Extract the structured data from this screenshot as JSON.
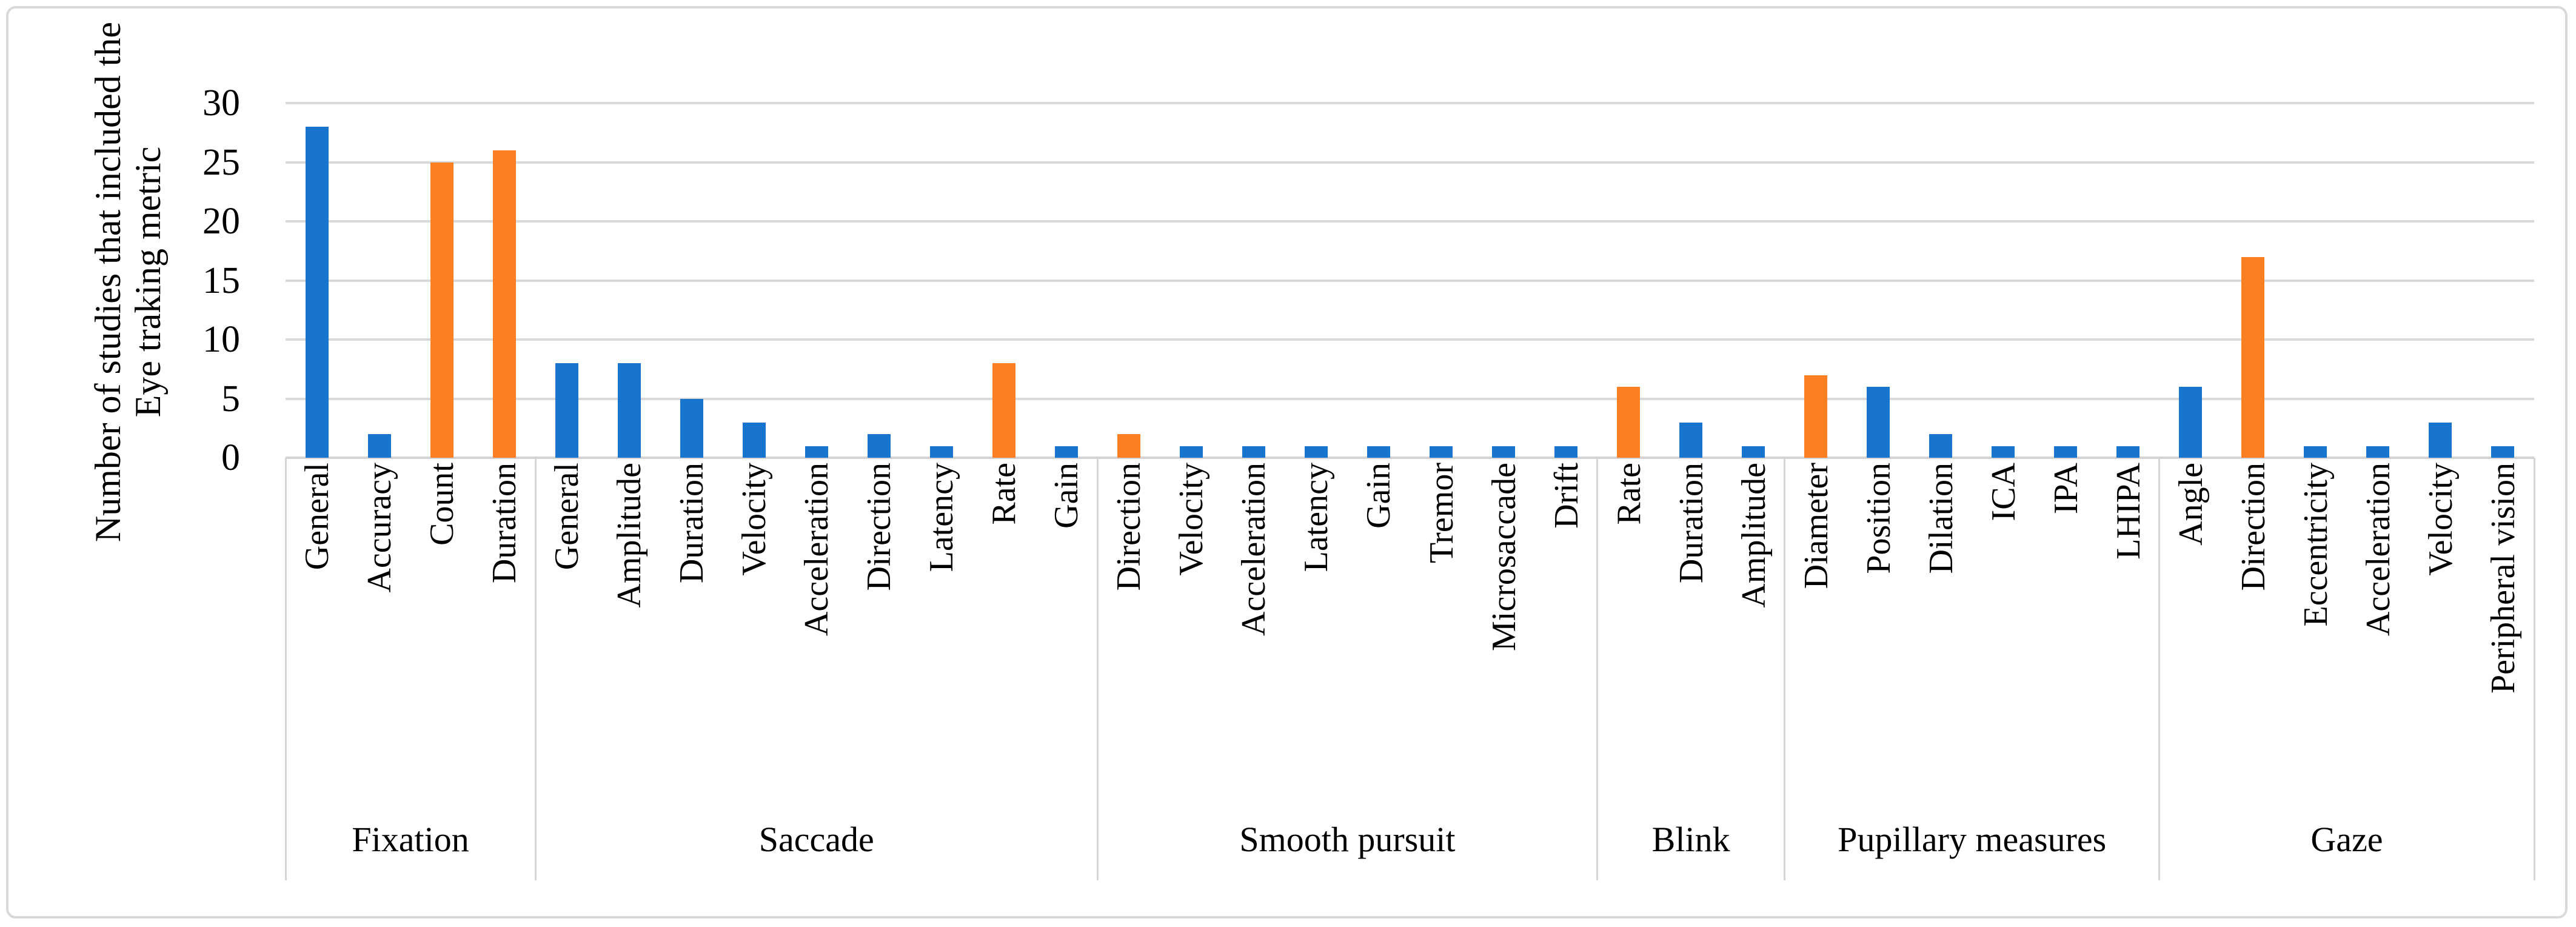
{
  "figure": {
    "ylabel_line1": "Number of studies that included the",
    "ylabel_line2": "Eye traking metric"
  },
  "chart_data": {
    "type": "bar",
    "title": "",
    "xlabel": "",
    "ylabel": "Number of studies that included the Eye traking metric",
    "ylim": [
      0,
      30
    ],
    "yticks": [
      0,
      5,
      10,
      15,
      20,
      25,
      30
    ],
    "grid": "horizontal",
    "legend": "none",
    "colors": {
      "blue": "#1874CD",
      "orange": "#FD7E23",
      "gridline": "#D9D9D9"
    },
    "groups": [
      {
        "label": "Fixation",
        "metrics": [
          {
            "label": "General",
            "value": 28,
            "color": "blue"
          },
          {
            "label": "Accuracy",
            "value": 2,
            "color": "blue"
          },
          {
            "label": "Count",
            "value": 25,
            "color": "orange"
          },
          {
            "label": "Duration",
            "value": 26,
            "color": "orange"
          }
        ]
      },
      {
        "label": "Saccade",
        "metrics": [
          {
            "label": "General",
            "value": 8,
            "color": "blue"
          },
          {
            "label": "Amplitude",
            "value": 8,
            "color": "blue"
          },
          {
            "label": "Duration",
            "value": 5,
            "color": "blue"
          },
          {
            "label": "Velocity",
            "value": 3,
            "color": "blue"
          },
          {
            "label": "Acceleration",
            "value": 1,
            "color": "blue"
          },
          {
            "label": "Direction",
            "value": 2,
            "color": "blue"
          },
          {
            "label": "Latency",
            "value": 1,
            "color": "blue"
          },
          {
            "label": "Rate",
            "value": 8,
            "color": "orange"
          },
          {
            "label": "Gain",
            "value": 1,
            "color": "blue"
          }
        ]
      },
      {
        "label": "Smooth pursuit",
        "metrics": [
          {
            "label": "Direction",
            "value": 2,
            "color": "orange"
          },
          {
            "label": "Velocity",
            "value": 1,
            "color": "blue"
          },
          {
            "label": "Acceleration",
            "value": 1,
            "color": "blue"
          },
          {
            "label": "Latency",
            "value": 1,
            "color": "blue"
          },
          {
            "label": "Gain",
            "value": 1,
            "color": "blue"
          },
          {
            "label": "Tremor",
            "value": 1,
            "color": "blue"
          },
          {
            "label": "Microsaccade",
            "value": 1,
            "color": "blue"
          },
          {
            "label": "Drift",
            "value": 1,
            "color": "blue"
          }
        ]
      },
      {
        "label": "Blink",
        "metrics": [
          {
            "label": "Rate",
            "value": 6,
            "color": "orange"
          },
          {
            "label": "Duration",
            "value": 3,
            "color": "blue"
          },
          {
            "label": "Amplitude",
            "value": 1,
            "color": "blue"
          }
        ]
      },
      {
        "label": "Pupillary measures",
        "metrics": [
          {
            "label": "Diameter",
            "value": 7,
            "color": "orange"
          },
          {
            "label": "Position",
            "value": 6,
            "color": "blue"
          },
          {
            "label": "Dilation",
            "value": 2,
            "color": "blue"
          },
          {
            "label": "ICA",
            "value": 1,
            "color": "blue"
          },
          {
            "label": "IPA",
            "value": 1,
            "color": "blue"
          },
          {
            "label": "LHIPA",
            "value": 1,
            "color": "blue"
          }
        ]
      },
      {
        "label": "Gaze",
        "metrics": [
          {
            "label": "Angle",
            "value": 6,
            "color": "blue"
          },
          {
            "label": "Direction",
            "value": 17,
            "color": "orange"
          },
          {
            "label": "Eccentricity",
            "value": 1,
            "color": "blue"
          },
          {
            "label": "Acceleration",
            "value": 1,
            "color": "blue"
          },
          {
            "label": "Velocity",
            "value": 3,
            "color": "blue"
          },
          {
            "label": "Peripheral vision",
            "value": 1,
            "color": "blue"
          }
        ]
      }
    ]
  }
}
